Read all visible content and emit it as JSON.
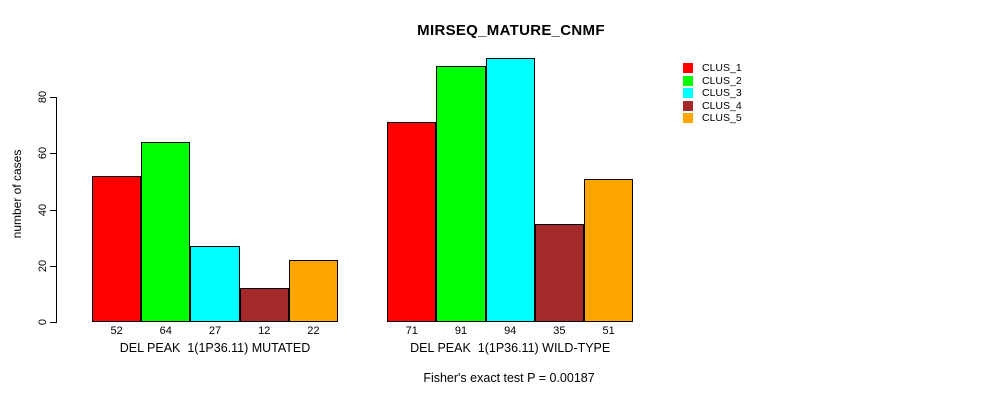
{
  "chart_data": {
    "type": "bar",
    "title": "MIRSEQ_MATURE_CNMF",
    "xlabel": "",
    "ylabel": "number of cases",
    "ylim": [
      0,
      94
    ],
    "yticks": [
      0,
      20,
      40,
      60,
      80
    ],
    "grid": false,
    "legend_position": "top-right-outside-plot",
    "categories": [
      "DEL PEAK  1(1P36.11) MUTATED",
      "DEL PEAK  1(1P36.11) WILD-TYPE"
    ],
    "series": [
      {
        "name": "CLUS_1",
        "color": "#FF0000",
        "values": [
          52,
          71
        ]
      },
      {
        "name": "CLUS_2",
        "color": "#00FF00",
        "values": [
          64,
          91
        ]
      },
      {
        "name": "CLUS_3",
        "color": "#00FFFF",
        "values": [
          27,
          94
        ]
      },
      {
        "name": "CLUS_4",
        "color": "#A52A2A",
        "values": [
          12,
          35
        ]
      },
      {
        "name": "CLUS_5",
        "color": "#FFA500",
        "values": [
          22,
          51
        ]
      }
    ],
    "bar_value_labels_shown": true,
    "annotation": "Fisher's exact test P = 0.00187"
  },
  "colors": {
    "background": "#FFFFFF",
    "axis": "#000000",
    "text": "#000000",
    "bar_border": "#000000"
  }
}
